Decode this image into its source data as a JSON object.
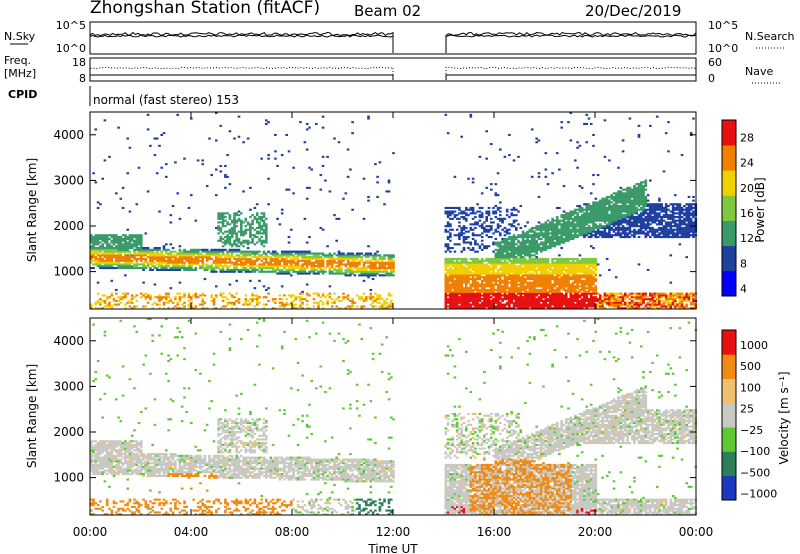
{
  "header": {
    "station": "Zhongshan Station (fitACF)",
    "beam": "Beam 02",
    "date": "20/Dec/2019",
    "cpid_label": "CPID",
    "cpid_text": "normal (fast stereo) 153"
  },
  "strips": {
    "noise": {
      "left_label": "N.Sky",
      "right_label": "N.Search",
      "left_ticks": [
        "10^5",
        "10^0"
      ],
      "right_ticks": [
        "10^5",
        "10^0"
      ]
    },
    "freq": {
      "left_label_1": "Freq.",
      "left_label_2": "[MHz]",
      "right_label": "Nave",
      "left_ticks": [
        "18",
        "8"
      ],
      "right_ticks": [
        "60",
        "0"
      ]
    }
  },
  "chart_data": [
    {
      "type": "heatmap",
      "panel": "power",
      "ylabel": "Slant Range [km]",
      "y_ticks": [
        "4000",
        "3000",
        "2000",
        "1000"
      ],
      "ylim": [
        180,
        4500
      ],
      "colorbar_label": "Power [dB]",
      "colorbar_ticks": [
        "28",
        "24",
        "20",
        "16",
        "12",
        "8",
        "4"
      ],
      "colors": [
        "#0000ff",
        "#2040a0",
        "#3a9a6a",
        "#80c840",
        "#f0d000",
        "#f08000",
        "#e81010"
      ],
      "data_gap_hours": [
        12.0,
        14.0
      ]
    },
    {
      "type": "heatmap",
      "panel": "velocity",
      "ylabel": "Slant Range [km]",
      "y_ticks": [
        "4000",
        "3000",
        "2000",
        "1000"
      ],
      "ylim": [
        180,
        4500
      ],
      "colorbar_label": "Velocity [m s⁻¹]",
      "colorbar_ticks": [
        "1000",
        "500",
        "100",
        "25",
        "−25",
        "−100",
        "−500",
        "−1000"
      ],
      "colors": [
        "#1a38c0",
        "#2e7e5a",
        "#5cc832",
        "#c8c8c4",
        "#f0c070",
        "#f08a10",
        "#e81010"
      ],
      "data_gap_hours": [
        12.0,
        14.0
      ]
    }
  ],
  "x_axis": {
    "label": "Time UT",
    "ticks": [
      "00:00",
      "04:00",
      "08:00",
      "12:00",
      "16:00",
      "20:00",
      "00:00"
    ]
  }
}
